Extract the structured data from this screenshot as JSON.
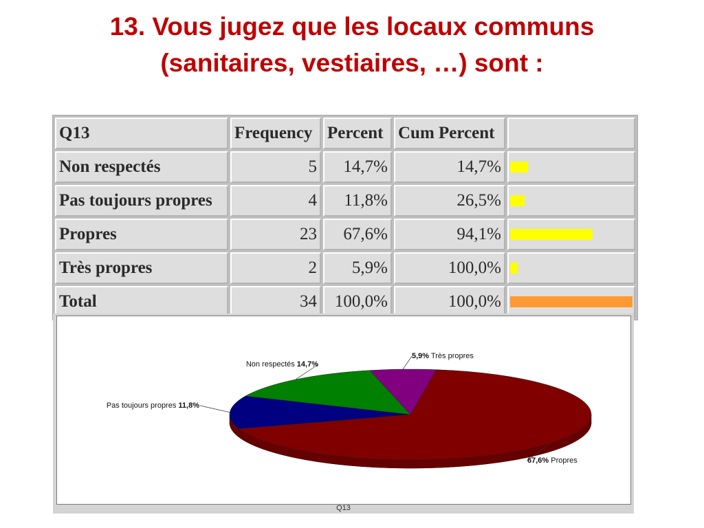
{
  "title": {
    "line1": "13. Vous jugez que les locaux communs",
    "line2": "(sanitaires, vestiaires, …) sont :"
  },
  "table": {
    "headers": [
      "Q13",
      "Frequency",
      "Percent",
      "Cum Percent",
      ""
    ],
    "rows": [
      {
        "label": "Non respectés",
        "frequency": "5",
        "percent": "14,7%",
        "cum": "14,7%",
        "bar_fraction": 0.147,
        "bar_color": "#ffff00"
      },
      {
        "label": "Pas toujours propres",
        "frequency": "4",
        "percent": "11,8%",
        "cum": "26,5%",
        "bar_fraction": 0.118,
        "bar_color": "#ffff00"
      },
      {
        "label": "Propres",
        "frequency": "23",
        "percent": "67,6%",
        "cum": "94,1%",
        "bar_fraction": 0.676,
        "bar_color": "#ffff00"
      },
      {
        "label": "Très propres",
        "frequency": "2",
        "percent": "5,9%",
        "cum": "100,0%",
        "bar_fraction": 0.059,
        "bar_color": "#ffff00"
      },
      {
        "label": "Total",
        "frequency": "34",
        "percent": "100,0%",
        "cum": "100,0%",
        "bar_fraction": 1.0,
        "bar_color": "#ff9933"
      }
    ]
  },
  "chart_data": {
    "type": "pie",
    "xlabel": "Q13",
    "slices": [
      {
        "label": "Non respectés",
        "value": 14.7,
        "value_label": "14,7%",
        "color": "#008000"
      },
      {
        "label": "Pas toujours propres",
        "value": 11.8,
        "value_label": "11,8%",
        "color": "#000080"
      },
      {
        "label": "Propres",
        "value": 67.6,
        "value_label": "67,6%",
        "color": "#800000"
      },
      {
        "label": "Très propres",
        "value": 5.9,
        "value_label": "5,9%",
        "color": "#800080"
      }
    ]
  }
}
